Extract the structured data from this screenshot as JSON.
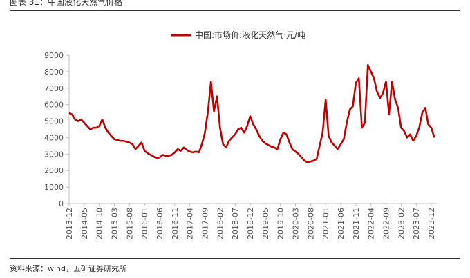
{
  "header": {
    "title": "图表 31：中国液化天然气价格"
  },
  "source": "资料来源：wind，五矿证券研究所",
  "colors": {
    "series": "#c00000",
    "axis": "#bfbfbf",
    "text": "#555555"
  },
  "chart_data": {
    "type": "line",
    "title": "",
    "xlabel": "",
    "ylabel": "",
    "ylim": [
      0,
      9000
    ],
    "yticks": [
      0,
      1000,
      2000,
      3000,
      4000,
      5000,
      6000,
      7000,
      8000,
      9000
    ],
    "xtick_labels": [
      "2013-12",
      "2014-05",
      "2014-10",
      "2015-03",
      "2015-08",
      "2016-01",
      "2016-06",
      "2016-11",
      "2017-04",
      "2017-09",
      "2018-02",
      "2018-07",
      "2018-12",
      "2019-05",
      "2019-10",
      "2020-03",
      "2020-08",
      "2021-01",
      "2021-06",
      "2021-11",
      "2022-04",
      "2022-09",
      "2023-02",
      "2023-07",
      "2023-12"
    ],
    "grid": false,
    "legend_position": "top-center",
    "series": [
      {
        "name": "中国:市场价:液化天然气 元/吨",
        "points": [
          [
            "2013-12",
            5500
          ],
          [
            "2014-01",
            5400
          ],
          [
            "2014-02",
            5100
          ],
          [
            "2014-03",
            5000
          ],
          [
            "2014-04",
            5100
          ],
          [
            "2014-05",
            4900
          ],
          [
            "2014-06",
            4700
          ],
          [
            "2014-07",
            4500
          ],
          [
            "2014-08",
            4600
          ],
          [
            "2014-09",
            4600
          ],
          [
            "2014-10",
            4700
          ],
          [
            "2014-11",
            5100
          ],
          [
            "2014-12",
            4600
          ],
          [
            "2015-01",
            4300
          ],
          [
            "2015-02",
            4100
          ],
          [
            "2015-03",
            3900
          ],
          [
            "2015-04",
            3850
          ],
          [
            "2015-05",
            3800
          ],
          [
            "2015-06",
            3800
          ],
          [
            "2015-07",
            3750
          ],
          [
            "2015-08",
            3700
          ],
          [
            "2015-09",
            3600
          ],
          [
            "2015-10",
            3300
          ],
          [
            "2015-11",
            3500
          ],
          [
            "2015-12",
            3700
          ],
          [
            "2016-01",
            3200
          ],
          [
            "2016-02",
            3050
          ],
          [
            "2016-03",
            2950
          ],
          [
            "2016-04",
            2850
          ],
          [
            "2016-05",
            2750
          ],
          [
            "2016-06",
            2800
          ],
          [
            "2016-07",
            2950
          ],
          [
            "2016-08",
            2900
          ],
          [
            "2016-09",
            2900
          ],
          [
            "2016-10",
            2950
          ],
          [
            "2016-11",
            3100
          ],
          [
            "2016-12",
            3300
          ],
          [
            "2017-01",
            3200
          ],
          [
            "2017-02",
            3400
          ],
          [
            "2017-03",
            3250
          ],
          [
            "2017-04",
            3150
          ],
          [
            "2017-05",
            3100
          ],
          [
            "2017-06",
            3150
          ],
          [
            "2017-07",
            3100
          ],
          [
            "2017-08",
            3600
          ],
          [
            "2017-09",
            4300
          ],
          [
            "2017-10",
            5600
          ],
          [
            "2017-11",
            7400
          ],
          [
            "2017-12",
            5600
          ],
          [
            "2018-01",
            6500
          ],
          [
            "2018-02",
            4600
          ],
          [
            "2018-03",
            3600
          ],
          [
            "2018-04",
            3400
          ],
          [
            "2018-05",
            3800
          ],
          [
            "2018-06",
            4000
          ],
          [
            "2018-07",
            4200
          ],
          [
            "2018-08",
            4500
          ],
          [
            "2018-09",
            4600
          ],
          [
            "2018-10",
            4300
          ],
          [
            "2018-11",
            4700
          ],
          [
            "2018-12",
            5300
          ],
          [
            "2019-01",
            4800
          ],
          [
            "2019-02",
            4500
          ],
          [
            "2019-03",
            4100
          ],
          [
            "2019-04",
            3800
          ],
          [
            "2019-05",
            3650
          ],
          [
            "2019-06",
            3550
          ],
          [
            "2019-07",
            3450
          ],
          [
            "2019-08",
            3400
          ],
          [
            "2019-09",
            3300
          ],
          [
            "2019-10",
            3900
          ],
          [
            "2019-11",
            4300
          ],
          [
            "2019-12",
            4200
          ],
          [
            "2020-01",
            3700
          ],
          [
            "2020-02",
            3300
          ],
          [
            "2020-03",
            3150
          ],
          [
            "2020-04",
            3000
          ],
          [
            "2020-05",
            2800
          ],
          [
            "2020-06",
            2600
          ],
          [
            "2020-07",
            2500
          ],
          [
            "2020-08",
            2550
          ],
          [
            "2020-09",
            2600
          ],
          [
            "2020-10",
            2700
          ],
          [
            "2020-11",
            3500
          ],
          [
            "2020-12",
            4300
          ],
          [
            "2021-01",
            6300
          ],
          [
            "2021-02",
            4100
          ],
          [
            "2021-03",
            3700
          ],
          [
            "2021-04",
            3500
          ],
          [
            "2021-05",
            3300
          ],
          [
            "2021-06",
            3600
          ],
          [
            "2021-07",
            3900
          ],
          [
            "2021-08",
            4900
          ],
          [
            "2021-09",
            5700
          ],
          [
            "2021-10",
            5900
          ],
          [
            "2021-11",
            7300
          ],
          [
            "2021-12",
            7600
          ],
          [
            "2022-01",
            4600
          ],
          [
            "2022-02",
            4900
          ],
          [
            "2022-03",
            8400
          ],
          [
            "2022-04",
            8000
          ],
          [
            "2022-05",
            7600
          ],
          [
            "2022-06",
            6800
          ],
          [
            "2022-07",
            6400
          ],
          [
            "2022-08",
            6700
          ],
          [
            "2022-09",
            7400
          ],
          [
            "2022-10",
            5400
          ],
          [
            "2022-11",
            7400
          ],
          [
            "2022-12",
            6300
          ],
          [
            "2023-01",
            5800
          ],
          [
            "2023-02",
            4600
          ],
          [
            "2023-03",
            4400
          ],
          [
            "2023-04",
            4000
          ],
          [
            "2023-05",
            4200
          ],
          [
            "2023-06",
            3800
          ],
          [
            "2023-07",
            4100
          ],
          [
            "2023-08",
            4600
          ],
          [
            "2023-09",
            5500
          ],
          [
            "2023-10",
            5800
          ],
          [
            "2023-11",
            4800
          ],
          [
            "2023-12",
            4600
          ],
          [
            "2024-01",
            4000
          ]
        ]
      }
    ]
  }
}
